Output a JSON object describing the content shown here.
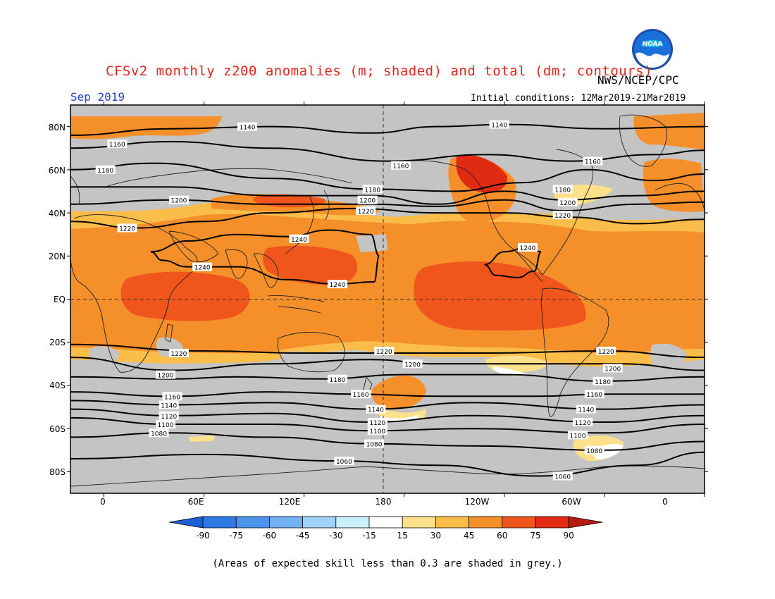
{
  "title": "CFSv2 monthly z200 anomalies (m; shaded) and total (dm; contours)",
  "agency": "NWS/NCEP/CPC",
  "logo_text": "NOAA",
  "valid_month": "Sep 2019",
  "initial_conditions": "Initial conditions: 12Mar2019-21Mar2019",
  "footnote": "(Areas of expected skill less than 0.3 are shaded in grey.)",
  "axes": {
    "lat_ticks": [
      "80N",
      "60N",
      "40N",
      "20N",
      "EQ",
      "20S",
      "40S",
      "60S",
      "80S"
    ],
    "lon_ticks": [
      "0",
      "60E",
      "120E",
      "180",
      "120W",
      "60W",
      "0"
    ]
  },
  "colorbar": {
    "levels": [
      "-90",
      "-75",
      "-60",
      "-45",
      "-30",
      "-15",
      "15",
      "30",
      "45",
      "60",
      "75",
      "90"
    ],
    "colors": [
      "#1d5fd6",
      "#2f79e4",
      "#4c93ec",
      "#70b0f3",
      "#9fd3f8",
      "#c9f0fb",
      "#ffffff",
      "#fde08a",
      "#fbbd4a",
      "#f58f2a",
      "#f0561c",
      "#e02a12",
      "#b71a0e"
    ]
  },
  "map_colors": {
    "grey": "#c4c4c4",
    "anom_15_30": "#fde08a",
    "anom_30_45": "#fbbd4a",
    "anom_45_60": "#f58f2a",
    "anom_60_75": "#f0561c",
    "anom_75_90": "#e02a12",
    "contour": "#000000",
    "coast": "#222222"
  },
  "contour_labels": [
    {
      "text": "1140",
      "lon": 86,
      "lat": 80
    },
    {
      "text": "1140",
      "lon": 237,
      "lat": 81
    },
    {
      "text": "1160",
      "lon": 8,
      "lat": 72
    },
    {
      "text": "1160",
      "lon": 178,
      "lat": 62
    },
    {
      "text": "1160",
      "lon": 293,
      "lat": 64
    },
    {
      "text": "1180",
      "lon": 1,
      "lat": 60
    },
    {
      "text": "1180",
      "lon": 161,
      "lat": 51
    },
    {
      "text": "1180",
      "lon": 275,
      "lat": 51
    },
    {
      "text": "1200",
      "lon": 158,
      "lat": 46
    },
    {
      "text": "1200",
      "lon": 278,
      "lat": 45
    },
    {
      "text": "1200",
      "lon": 45,
      "lat": 46
    },
    {
      "text": "1220",
      "lon": 157,
      "lat": 41
    },
    {
      "text": "1220",
      "lon": 275,
      "lat": 39
    },
    {
      "text": "1220",
      "lon": 14,
      "lat": 33
    },
    {
      "text": "1240",
      "lon": 117,
      "lat": 28
    },
    {
      "text": "1240",
      "lon": 254,
      "lat": 24
    },
    {
      "text": "1240",
      "lon": 59,
      "lat": 15
    },
    {
      "text": "1240",
      "lon": 140,
      "lat": 7
    },
    {
      "text": "1220",
      "lon": 45,
      "lat": -25
    },
    {
      "text": "1220",
      "lon": 168,
      "lat": -24
    },
    {
      "text": "1220",
      "lon": 301,
      "lat": -24
    },
    {
      "text": "1200",
      "lon": 185,
      "lat": -30
    },
    {
      "text": "1200",
      "lon": 305,
      "lat": -32
    },
    {
      "text": "1200",
      "lon": 37,
      "lat": -35
    },
    {
      "text": "1180",
      "lon": 140,
      "lat": -37
    },
    {
      "text": "1180",
      "lon": 299,
      "lat": -38
    },
    {
      "text": "1160",
      "lon": 41,
      "lat": -45
    },
    {
      "text": "1160",
      "lon": 154,
      "lat": -44
    },
    {
      "text": "1160",
      "lon": 294,
      "lat": -44
    },
    {
      "text": "1140",
      "lon": 39,
      "lat": -49
    },
    {
      "text": "1140",
      "lon": 163,
      "lat": -51
    },
    {
      "text": "1140",
      "lon": 289,
      "lat": -51
    },
    {
      "text": "1120",
      "lon": 39,
      "lat": -54
    },
    {
      "text": "1120",
      "lon": 164,
      "lat": -57
    },
    {
      "text": "1120",
      "lon": 287,
      "lat": -57
    },
    {
      "text": "1100",
      "lon": 37,
      "lat": -58
    },
    {
      "text": "1100",
      "lon": 164,
      "lat": -61
    },
    {
      "text": "1100",
      "lon": 284,
      "lat": -63
    },
    {
      "text": "1080",
      "lon": 33,
      "lat": -62
    },
    {
      "text": "1080",
      "lon": 162,
      "lat": -67
    },
    {
      "text": "1080",
      "lon": 294,
      "lat": -70
    },
    {
      "text": "1060",
      "lon": 144,
      "lat": -75
    },
    {
      "text": "1060",
      "lon": 275,
      "lat": -82
    }
  ]
}
